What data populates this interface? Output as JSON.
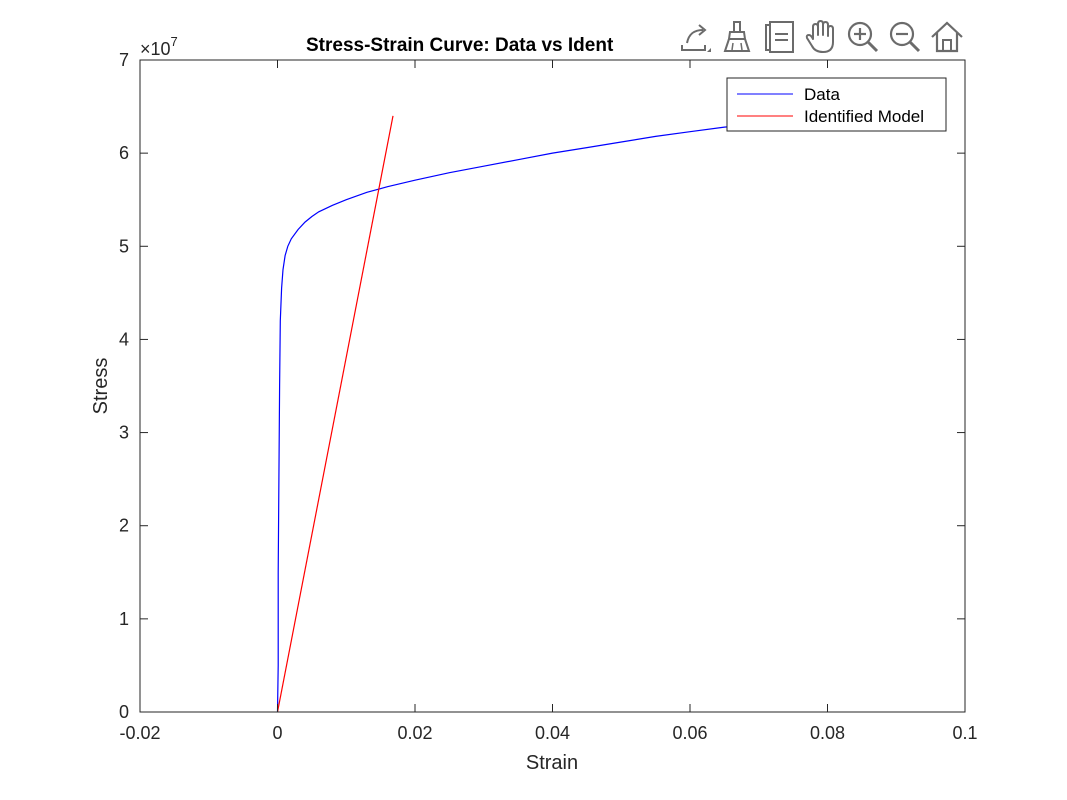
{
  "chart_data": {
    "type": "line",
    "title": "Stress-Strain Curve: Data vs Ident",
    "xlabel": "Strain",
    "ylabel": "Stress",
    "y_exponent_label": "×10",
    "y_exponent": "7",
    "xlim": [
      -0.02,
      0.1
    ],
    "ylim": [
      0,
      7
    ],
    "y_scale": 10000000,
    "xticks": [
      -0.02,
      0,
      0.02,
      0.04,
      0.06,
      0.08,
      0.1
    ],
    "xtick_labels": [
      "-0.02",
      "0",
      "0.02",
      "0.04",
      "0.06",
      "0.08",
      "0.1"
    ],
    "yticks": [
      0,
      1,
      2,
      3,
      4,
      5,
      6,
      7
    ],
    "ytick_labels": [
      "0",
      "1",
      "2",
      "3",
      "4",
      "5",
      "6",
      "7"
    ],
    "grid": false,
    "legend_position": "top-right",
    "series": [
      {
        "name": "Data",
        "color": "#0000ff",
        "x": [
          0.0,
          0.0001,
          0.0001,
          0.0002,
          0.0003,
          0.0004,
          0.0006,
          0.0008,
          0.0011,
          0.0015,
          0.002,
          0.003,
          0.004,
          0.005,
          0.006,
          0.008,
          0.01,
          0.013,
          0.016,
          0.02,
          0.025,
          0.03,
          0.035,
          0.04,
          0.045,
          0.05,
          0.055,
          0.06,
          0.065,
          0.07
        ],
        "y": [
          0.0,
          0.5,
          1.5,
          2.5,
          3.5,
          4.2,
          4.55,
          4.75,
          4.9,
          5.0,
          5.08,
          5.18,
          5.26,
          5.32,
          5.37,
          5.44,
          5.5,
          5.58,
          5.64,
          5.71,
          5.79,
          5.86,
          5.93,
          6.0,
          6.06,
          6.12,
          6.18,
          6.23,
          6.28,
          6.31
        ]
      },
      {
        "name": "Identified Model",
        "color": "#ff0000",
        "x": [
          0.0,
          0.0168
        ],
        "y": [
          0.0,
          6.4
        ]
      }
    ]
  },
  "toolbar": {
    "buttons": [
      {
        "name": "export-icon"
      },
      {
        "name": "brush-icon"
      },
      {
        "name": "data-tips-icon"
      },
      {
        "name": "pan-icon"
      },
      {
        "name": "zoom-in-icon"
      },
      {
        "name": "zoom-out-icon"
      },
      {
        "name": "home-icon"
      }
    ]
  }
}
